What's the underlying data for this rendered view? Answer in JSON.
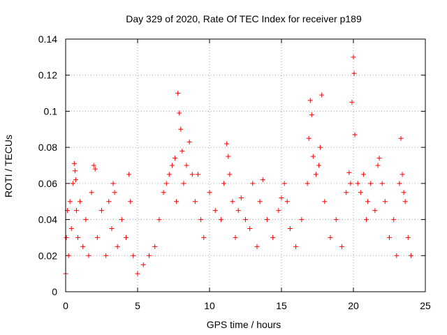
{
  "chart_data": {
    "type": "scatter",
    "title": "Day 329 of 2020, Rate Of TEC Index for receiver p189",
    "xlabel": "GPS time / hours",
    "ylabel": "ROTI / TECUs",
    "xlim": [
      0,
      25
    ],
    "ylim": [
      0,
      0.14
    ],
    "xticks": [
      0,
      5,
      10,
      15,
      20,
      25
    ],
    "xtick_labels": [
      "0",
      "5",
      "10",
      "15",
      "20",
      "25"
    ],
    "yticks": [
      0,
      0.02,
      0.04,
      0.06,
      0.08,
      0.1,
      0.12,
      0.14
    ],
    "ytick_labels": [
      "0",
      "0.02",
      "0.04",
      "0.06",
      "0.08",
      "0.1",
      "0.12",
      "0.14"
    ],
    "grid": true,
    "marker": "+",
    "color": "#ff0000",
    "series": [
      {
        "name": "ROTI",
        "x": [
          0.0,
          0.05,
          0.12,
          0.2,
          0.3,
          0.4,
          0.5,
          0.6,
          0.65,
          0.7,
          0.75,
          0.85,
          1.0,
          1.2,
          1.4,
          1.6,
          1.8,
          1.95,
          2.05,
          2.2,
          2.5,
          2.8,
          3.0,
          3.2,
          3.3,
          3.4,
          3.6,
          3.9,
          4.2,
          4.4,
          4.5,
          4.7,
          5.0,
          5.4,
          5.8,
          6.2,
          6.5,
          6.8,
          7.0,
          7.2,
          7.4,
          7.6,
          7.7,
          7.8,
          7.9,
          8.0,
          8.1,
          8.2,
          8.4,
          8.6,
          8.8,
          9.0,
          9.2,
          9.4,
          9.6,
          10.0,
          10.4,
          10.8,
          11.0,
          11.2,
          11.3,
          11.4,
          11.6,
          11.8,
          12.0,
          12.2,
          12.5,
          12.8,
          13.0,
          13.3,
          13.5,
          13.7,
          14.0,
          14.4,
          14.8,
          15.0,
          15.2,
          15.4,
          15.6,
          16.0,
          16.4,
          16.8,
          16.9,
          17.0,
          17.1,
          17.2,
          17.4,
          17.6,
          17.7,
          17.8,
          18.0,
          18.4,
          18.8,
          19.2,
          19.5,
          19.7,
          19.8,
          19.9,
          20.0,
          20.05,
          20.1,
          20.3,
          20.5,
          20.7,
          20.9,
          21.0,
          21.2,
          21.5,
          21.7,
          21.8,
          22.0,
          22.2,
          22.5,
          22.8,
          23.0,
          23.2,
          23.3,
          23.4,
          23.5,
          23.6,
          23.8,
          24.0
        ],
        "y": [
          0.01,
          0.03,
          0.045,
          0.02,
          0.05,
          0.035,
          0.06,
          0.071,
          0.067,
          0.062,
          0.045,
          0.03,
          0.05,
          0.025,
          0.04,
          0.02,
          0.055,
          0.07,
          0.068,
          0.03,
          0.045,
          0.02,
          0.05,
          0.035,
          0.06,
          0.055,
          0.025,
          0.04,
          0.03,
          0.065,
          0.05,
          0.02,
          0.01,
          0.015,
          0.02,
          0.025,
          0.04,
          0.055,
          0.06,
          0.065,
          0.07,
          0.074,
          0.05,
          0.11,
          0.099,
          0.09,
          0.078,
          0.06,
          0.07,
          0.083,
          0.065,
          0.05,
          0.065,
          0.04,
          0.03,
          0.055,
          0.045,
          0.04,
          0.06,
          0.082,
          0.075,
          0.065,
          0.05,
          0.03,
          0.045,
          0.052,
          0.04,
          0.035,
          0.06,
          0.025,
          0.05,
          0.062,
          0.04,
          0.03,
          0.045,
          0.052,
          0.06,
          0.05,
          0.035,
          0.025,
          0.04,
          0.06,
          0.085,
          0.106,
          0.098,
          0.075,
          0.065,
          0.07,
          0.08,
          0.109,
          0.05,
          0.03,
          0.04,
          0.025,
          0.055,
          0.066,
          0.06,
          0.105,
          0.13,
          0.121,
          0.087,
          0.06,
          0.055,
          0.065,
          0.04,
          0.05,
          0.06,
          0.045,
          0.07,
          0.074,
          0.06,
          0.05,
          0.03,
          0.04,
          0.02,
          0.06,
          0.085,
          0.065,
          0.055,
          0.05,
          0.03,
          0.02
        ]
      }
    ]
  }
}
